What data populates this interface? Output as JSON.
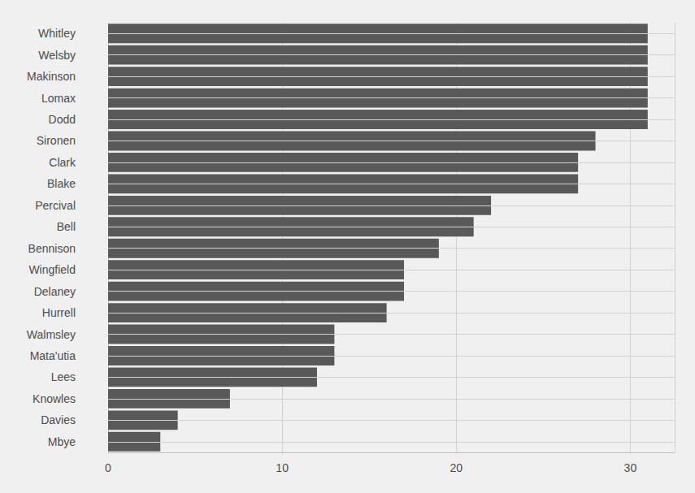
{
  "chart_data": {
    "type": "bar",
    "orientation": "horizontal",
    "categories": [
      "Whitley",
      "Welsby",
      "Makinson",
      "Lomax",
      "Dodd",
      "Sironen",
      "Clark",
      "Blake",
      "Percival",
      "Bell",
      "Bennison",
      "Wingfield",
      "Delaney",
      "Hurrell",
      "Walmsley",
      "Mata'utia",
      "Lees",
      "Knowles",
      "Davies",
      "Mbye"
    ],
    "values": [
      31,
      31,
      31,
      31,
      31,
      28,
      27,
      27,
      22,
      21,
      19,
      17,
      17,
      16,
      13,
      13,
      12,
      7,
      4,
      3
    ],
    "color": "#595959",
    "xlim": [
      0,
      32.55
    ],
    "xticks": [
      0,
      10,
      20,
      30
    ],
    "grid": true
  }
}
